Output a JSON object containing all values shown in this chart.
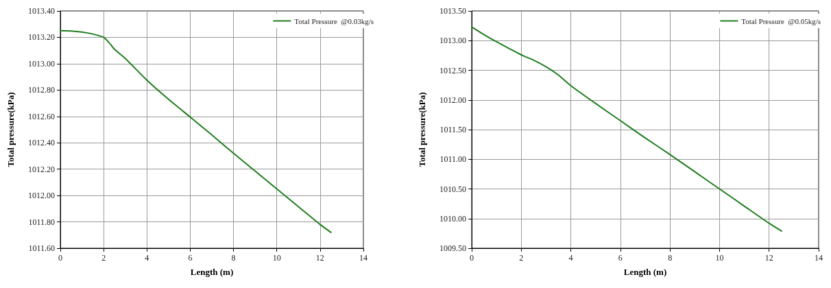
{
  "chart_data": [
    {
      "type": "line",
      "xlabel": "Length (m)",
      "ylabel": "Total pressure(kPa)",
      "xlim": [
        0,
        14
      ],
      "xticks": [
        0,
        2,
        4,
        6,
        8,
        10,
        12,
        14
      ],
      "ylim": [
        1011.6,
        1013.4
      ],
      "yticks": [
        {
          "value": 1011.6,
          "label": "1011.60"
        },
        {
          "value": 1011.8,
          "label": "1011.80"
        },
        {
          "value": 1012.0,
          "label": "1012.00"
        },
        {
          "value": 1012.2,
          "label": "1012.20"
        },
        {
          "value": 1012.4,
          "label": "1012.40"
        },
        {
          "value": 1012.6,
          "label": "1012.60"
        },
        {
          "value": 1012.8,
          "label": "1012.80"
        },
        {
          "value": 1013.0,
          "label": "1013.00"
        },
        {
          "value": 1013.2,
          "label": "1013.20"
        },
        {
          "value": 1013.4,
          "label": "1013.40"
        }
      ],
      "grid": true,
      "legend": "top right",
      "marker": "none",
      "line_style": "solid",
      "series": [
        {
          "name": "Total Pressure  @0.03kg/s",
          "color": "#1e7d1e",
          "x": [
            0,
            0.5,
            1,
            1.5,
            2,
            2.25,
            2.5,
            3,
            4,
            5,
            6,
            7,
            8,
            9,
            10,
            11,
            12,
            12.5
          ],
          "values": [
            1013.25,
            1013.248,
            1013.24,
            1013.225,
            1013.2,
            1013.16,
            1013.11,
            1013.04,
            1012.875,
            1012.73,
            1012.595,
            1012.46,
            1012.32,
            1012.185,
            1012.05,
            1011.915,
            1011.78,
            1011.72
          ]
        }
      ]
    },
    {
      "type": "line",
      "xlabel": "Length (m)",
      "ylabel": "Total pressure(kPa)",
      "xlim": [
        0,
        14
      ],
      "xticks": [
        0,
        2,
        4,
        6,
        8,
        10,
        12,
        14
      ],
      "ylim": [
        1009.5,
        1013.5
      ],
      "yticks": [
        {
          "value": 1009.5,
          "label": "1009.50"
        },
        {
          "value": 1010.0,
          "label": "1010.00"
        },
        {
          "value": 1010.5,
          "label": "1010.50"
        },
        {
          "value": 1011.0,
          "label": "1011.00"
        },
        {
          "value": 1011.5,
          "label": "1011.50"
        },
        {
          "value": 1012.0,
          "label": "1012.00"
        },
        {
          "value": 1012.5,
          "label": "1012.50"
        },
        {
          "value": 1013.0,
          "label": "1013.00"
        },
        {
          "value": 1013.5,
          "label": "1013.50"
        }
      ],
      "grid": true,
      "legend": "top right",
      "marker": "none",
      "line_style": "solid",
      "series": [
        {
          "name": "Total Pressure  @0.05kg/s",
          "color": "#1e7d1e",
          "x": [
            0,
            0.5,
            1,
            2,
            2.5,
            3,
            3.5,
            4,
            5,
            6,
            7,
            8,
            9,
            10,
            11,
            12,
            12.5
          ],
          "values": [
            1013.23,
            1013.1,
            1012.98,
            1012.76,
            1012.67,
            1012.56,
            1012.42,
            1012.24,
            1011.94,
            1011.65,
            1011.36,
            1011.08,
            1010.79,
            1010.5,
            1010.21,
            1009.92,
            1009.79
          ]
        }
      ]
    }
  ]
}
